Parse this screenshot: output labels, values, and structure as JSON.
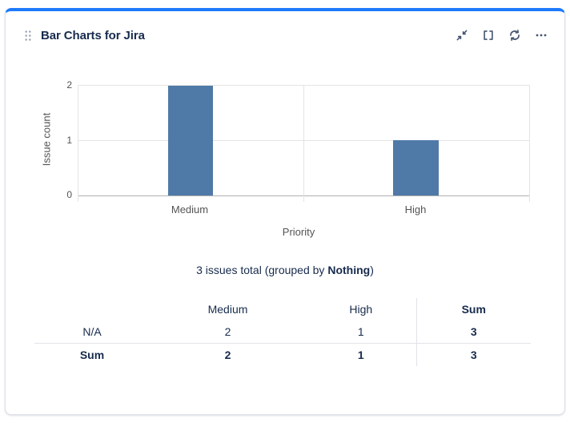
{
  "card": {
    "title": "Bar Charts for Jira"
  },
  "header": {
    "icons": [
      "collapse-icon",
      "expand-icon",
      "refresh-icon",
      "more-icon"
    ]
  },
  "chart_data": {
    "type": "bar",
    "categories": [
      "Medium",
      "High"
    ],
    "values": [
      2,
      1
    ],
    "title": "",
    "xlabel": "Priority",
    "ylabel": "Issue count",
    "yticks": [
      "0",
      "1",
      "2"
    ],
    "ylim": [
      0,
      2
    ],
    "grid": true,
    "legend": false,
    "bar_color": "#4F79A7"
  },
  "summary": {
    "prefix": "3 issues total (grouped by ",
    "group": "Nothing",
    "suffix": ")"
  },
  "table": {
    "col_headers": [
      "Medium",
      "High",
      "Sum"
    ],
    "rows": [
      {
        "label": "N/A",
        "medium": "2",
        "high": "1",
        "sum": "3"
      },
      {
        "label": "Sum",
        "medium": "2",
        "high": "1",
        "sum": "3"
      }
    ]
  },
  "colors": {
    "accent_blue": "#1D7AFC",
    "bar_blue": "#4F79A7",
    "navy_text": "#172B4D",
    "chart_text_gray": "#545454"
  }
}
